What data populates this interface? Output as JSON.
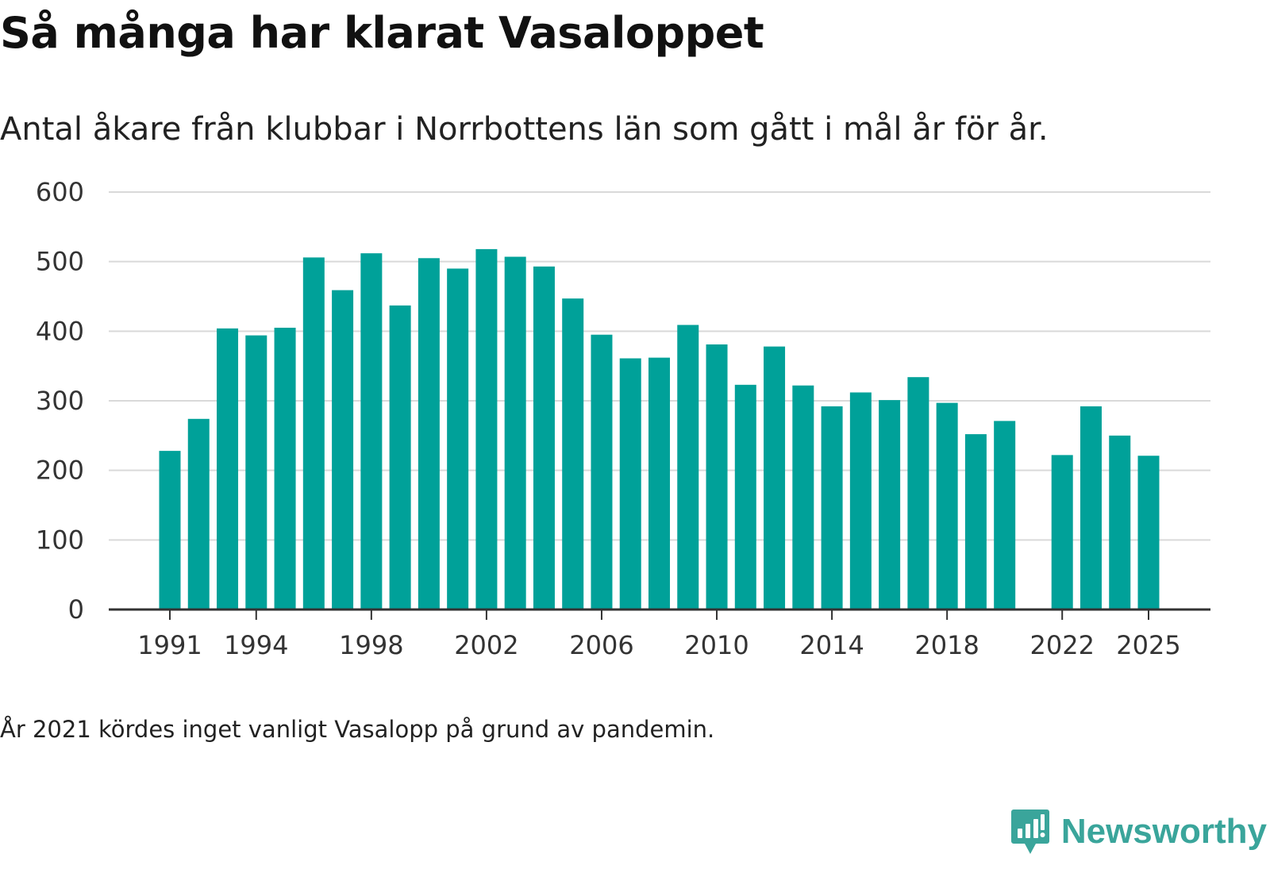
{
  "title": "Så många har klarat Vasaloppet",
  "subtitle": "Antal åkare från klubbar i Norrbottens län som gått i mål år för år.",
  "note": "År 2021 kördes inget vanligt Vasalopp på grund av pandemin.",
  "brand": {
    "name": "Newsworthy",
    "logo_icon": "newsworthy-bar-chart-icon",
    "color": "#3aa59b"
  },
  "colors": {
    "bar": "#00a199",
    "grid": "#d9d9d9",
    "axis": "#333333"
  },
  "chart_data": {
    "type": "bar",
    "title": "Så många har klarat Vasaloppet",
    "subtitle": "Antal åkare från klubbar i Norrbottens län som gått i mål år för år.",
    "xlabel": "",
    "ylabel": "",
    "ylim": [
      0,
      600
    ],
    "yticks": [
      0,
      100,
      200,
      300,
      400,
      500,
      600
    ],
    "ytick_labels": [
      "0",
      "100",
      "200",
      "300",
      "400",
      "500",
      "600"
    ],
    "xticks": [
      1991,
      1994,
      1998,
      2002,
      2006,
      2010,
      2014,
      2018,
      2022,
      2025
    ],
    "xtick_labels": [
      "1991",
      "1994",
      "1998",
      "2002",
      "2006",
      "2010",
      "2014",
      "2018",
      "2022",
      "2025"
    ],
    "xlim": [
      1991,
      2025
    ],
    "grid": true,
    "legend": "none",
    "categories": [
      1991,
      1992,
      1993,
      1994,
      1995,
      1996,
      1997,
      1998,
      1999,
      2000,
      2001,
      2002,
      2003,
      2004,
      2005,
      2006,
      2007,
      2008,
      2009,
      2010,
      2011,
      2012,
      2013,
      2014,
      2015,
      2016,
      2017,
      2018,
      2019,
      2020,
      2021,
      2022,
      2023,
      2024,
      2025
    ],
    "values": [
      228,
      274,
      404,
      394,
      405,
      506,
      459,
      512,
      437,
      505,
      490,
      518,
      507,
      493,
      447,
      395,
      361,
      362,
      409,
      381,
      323,
      378,
      322,
      292,
      312,
      301,
      334,
      297,
      252,
      271,
      null,
      222,
      292,
      250,
      221
    ]
  }
}
